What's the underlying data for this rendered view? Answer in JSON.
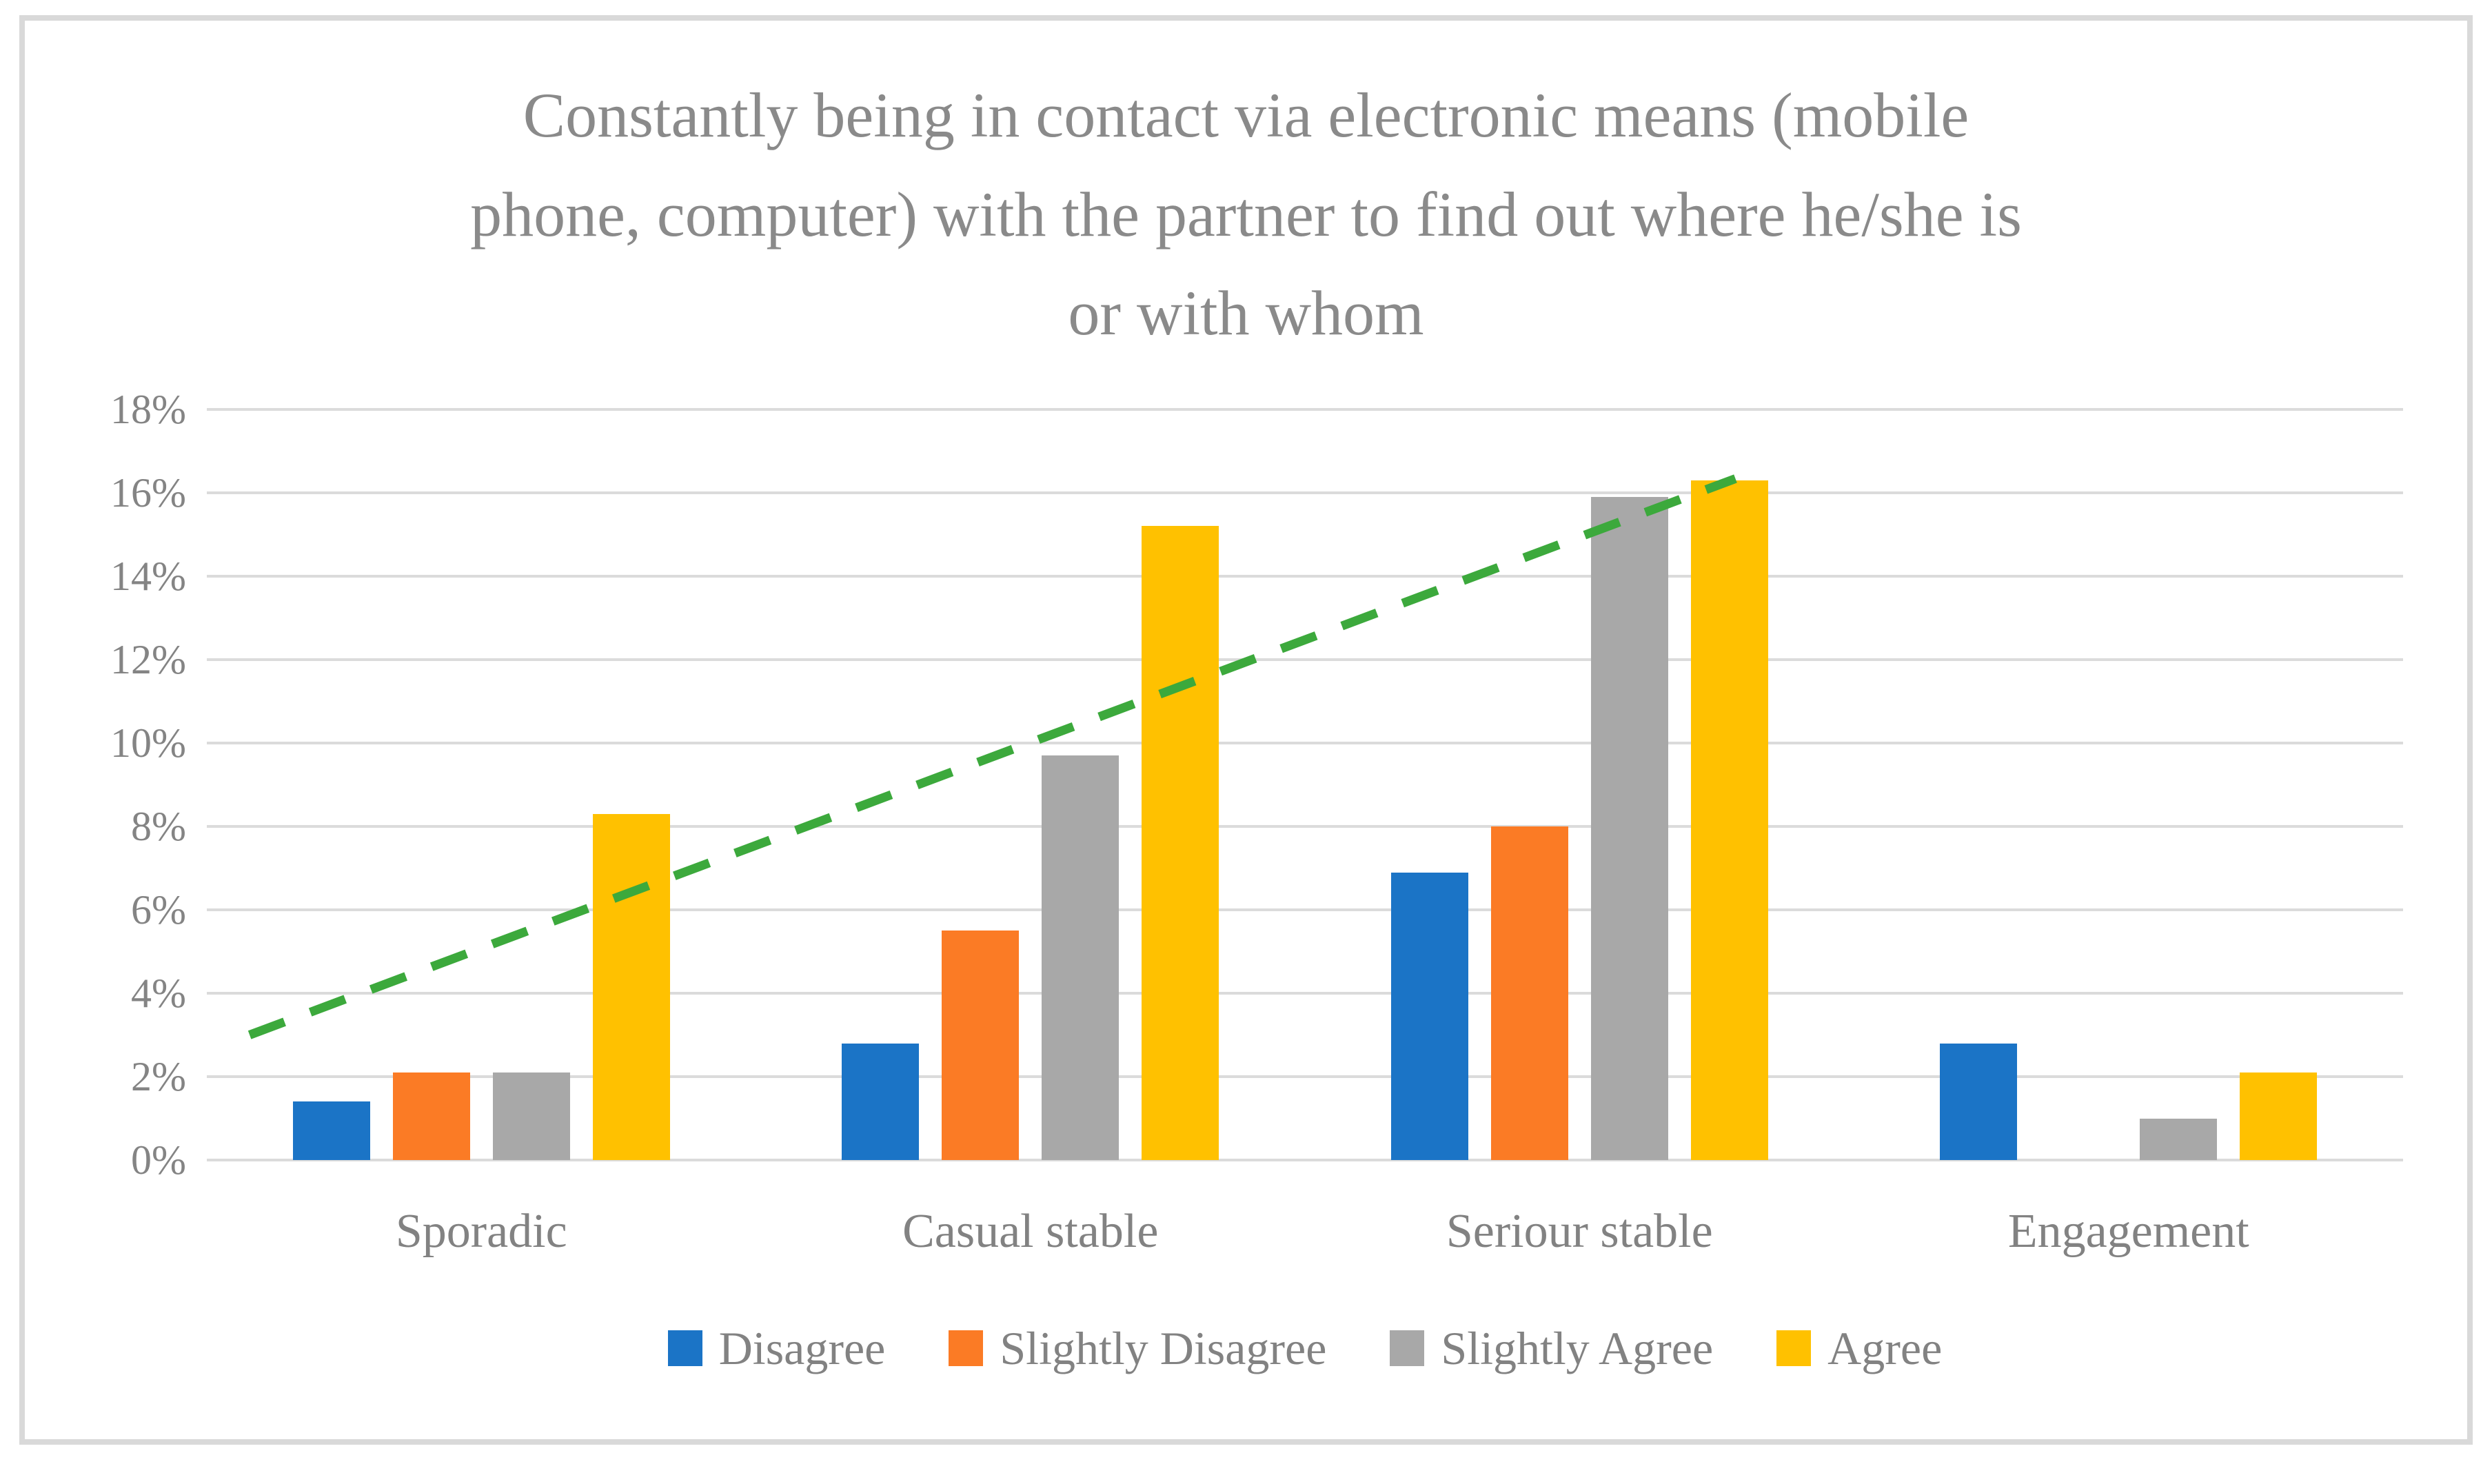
{
  "chart_data": {
    "type": "bar",
    "title": "Constantly being in contact via electronic means (mobile phone, computer) with the partner to find out where he/she is or with whom",
    "title_lines": [
      "Constantly being in contact via electronic means (mobile",
      "phone, computer) with the partner to find out where he/she is",
      "or with whom"
    ],
    "categories": [
      "Sporadic",
      "Casual stable",
      "Seriour stable",
      "Engagement"
    ],
    "series": [
      {
        "name": "Disagree",
        "color": "#1B74C6",
        "values": [
          1.4,
          2.8,
          6.9,
          2.8
        ]
      },
      {
        "name": "Slightly Disagree",
        "color": "#FB7B25",
        "values": [
          2.1,
          5.5,
          8.0,
          0
        ]
      },
      {
        "name": "Slightly Agree",
        "color": "#A8A8A8",
        "values": [
          2.1,
          9.7,
          15.9,
          1.0
        ]
      },
      {
        "name": "Agree",
        "color": "#FFC100",
        "values": [
          8.3,
          15.2,
          16.3,
          2.1
        ]
      }
    ],
    "ylabel": "",
    "xlabel": "",
    "ylim": [
      0,
      18
    ],
    "ytick_step": 2,
    "yticks": [
      "0%",
      "2%",
      "4%",
      "6%",
      "8%",
      "10%",
      "12%",
      "14%",
      "16%",
      "18%"
    ],
    "grid": true,
    "legend_position": "bottom",
    "trendline": {
      "style": "dashed",
      "color": "#3CA93C",
      "points": [
        {
          "x_frac": 0.0195,
          "value": 3.0
        },
        {
          "x_frac": 0.696,
          "value": 16.34
        }
      ]
    }
  },
  "colors": {
    "frame_border": "#D9D9D9",
    "gridline": "#DBDBDB",
    "title_text": "#8A8A8A",
    "axis_text": "#848484",
    "background": "#FFFFFF"
  }
}
